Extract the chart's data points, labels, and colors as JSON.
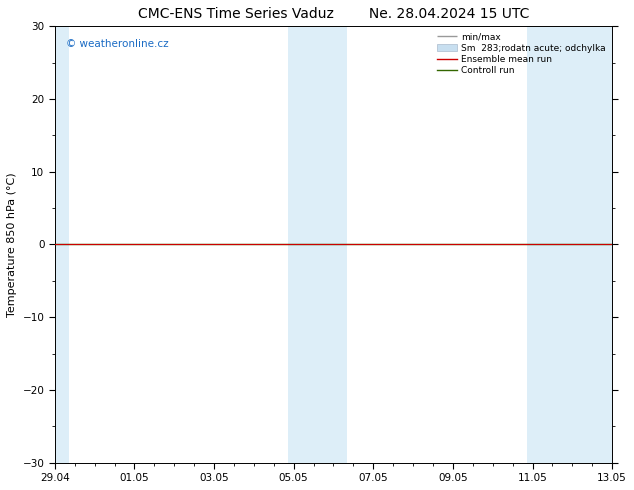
{
  "title_left": "CMC-ENS Time Series Vaduz",
  "title_right": "Ne. 28.04.2024 15 UTC",
  "ylabel": "Temperature 850 hPa (°C)",
  "ylim": [
    -30,
    30
  ],
  "yticks": [
    -30,
    -20,
    -10,
    0,
    10,
    20,
    30
  ],
  "xtick_labels": [
    "29.04",
    "01.05",
    "03.05",
    "05.05",
    "07.05",
    "09.05",
    "11.05",
    "13.05"
  ],
  "xtick_positions": [
    0,
    2,
    4,
    6,
    8,
    10,
    12,
    14
  ],
  "watermark": "© weatheronline.cz",
  "watermark_color": "#1a6bc4",
  "bg_color": "#ffffff",
  "plot_bg_color": "#ffffff",
  "shaded_bands": [
    {
      "x_start": -0.15,
      "x_end": 0.35,
      "color": "#ddeef8"
    },
    {
      "x_start": 5.85,
      "x_end": 7.35,
      "color": "#ddeef8"
    },
    {
      "x_start": 11.85,
      "x_end": 14.15,
      "color": "#ddeef8"
    }
  ],
  "flat_line_color_ensemble": "#cc0000",
  "flat_line_color_control": "#336600",
  "legend_minmax_color": "#999999",
  "legend_sm_color": "#c8dff0",
  "title_fontsize": 10,
  "axis_label_fontsize": 8,
  "tick_fontsize": 7.5,
  "total_days": 14,
  "figsize": [
    6.34,
    4.9
  ],
  "dpi": 100
}
